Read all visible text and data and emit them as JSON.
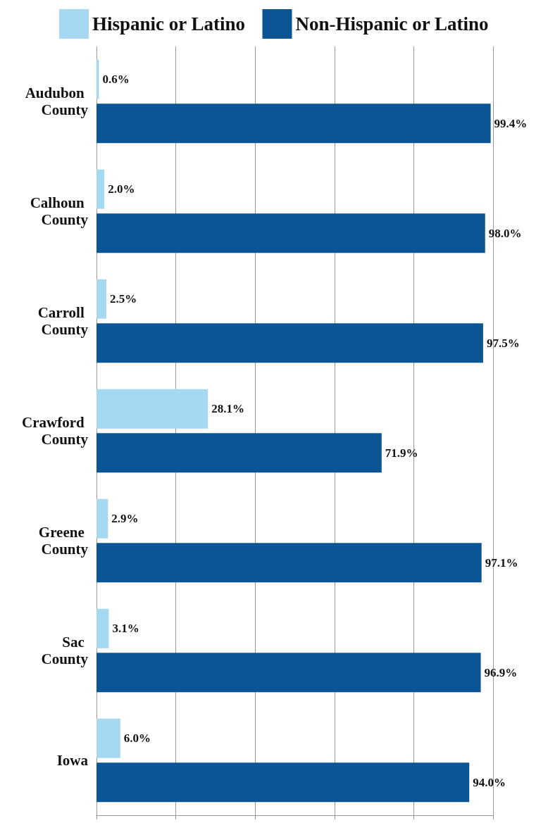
{
  "chart_data": {
    "type": "bar",
    "orientation": "horizontal",
    "categories": [
      "Audubon County",
      "Calhoun County",
      "Carroll County",
      "Crawford County",
      "Greene County",
      "Sac County",
      "Iowa"
    ],
    "series": [
      {
        "name": "Hispanic or Latino",
        "color": "#a6d8f2",
        "values": [
          0.6,
          2.0,
          2.5,
          28.1,
          2.9,
          3.1,
          6.0
        ],
        "value_labels": [
          "0.6%",
          "2.0%",
          "2.5%",
          "28.1%",
          "2.9%",
          "3.1%",
          "6.0%"
        ]
      },
      {
        "name": "Non-Hispanic or Latino",
        "color": "#0c5595",
        "values": [
          99.4,
          98.0,
          97.5,
          71.9,
          97.1,
          96.9,
          94.0
        ],
        "value_labels": [
          "99.4%",
          "98.0%",
          "97.5%",
          "71.9%",
          "97.1%",
          "96.9%",
          "94.0%"
        ]
      }
    ],
    "xlim": [
      0,
      100
    ],
    "xticks": [
      {
        "value": 0,
        "label": null
      },
      {
        "value": 20,
        "label": null
      },
      {
        "value": 40,
        "label": null
      },
      {
        "value": 60,
        "label": null
      },
      {
        "value": 80,
        "label": null
      },
      {
        "value": 100,
        "label": null
      }
    ],
    "grid": "x",
    "legend": "top",
    "tick_labels": "y"
  }
}
